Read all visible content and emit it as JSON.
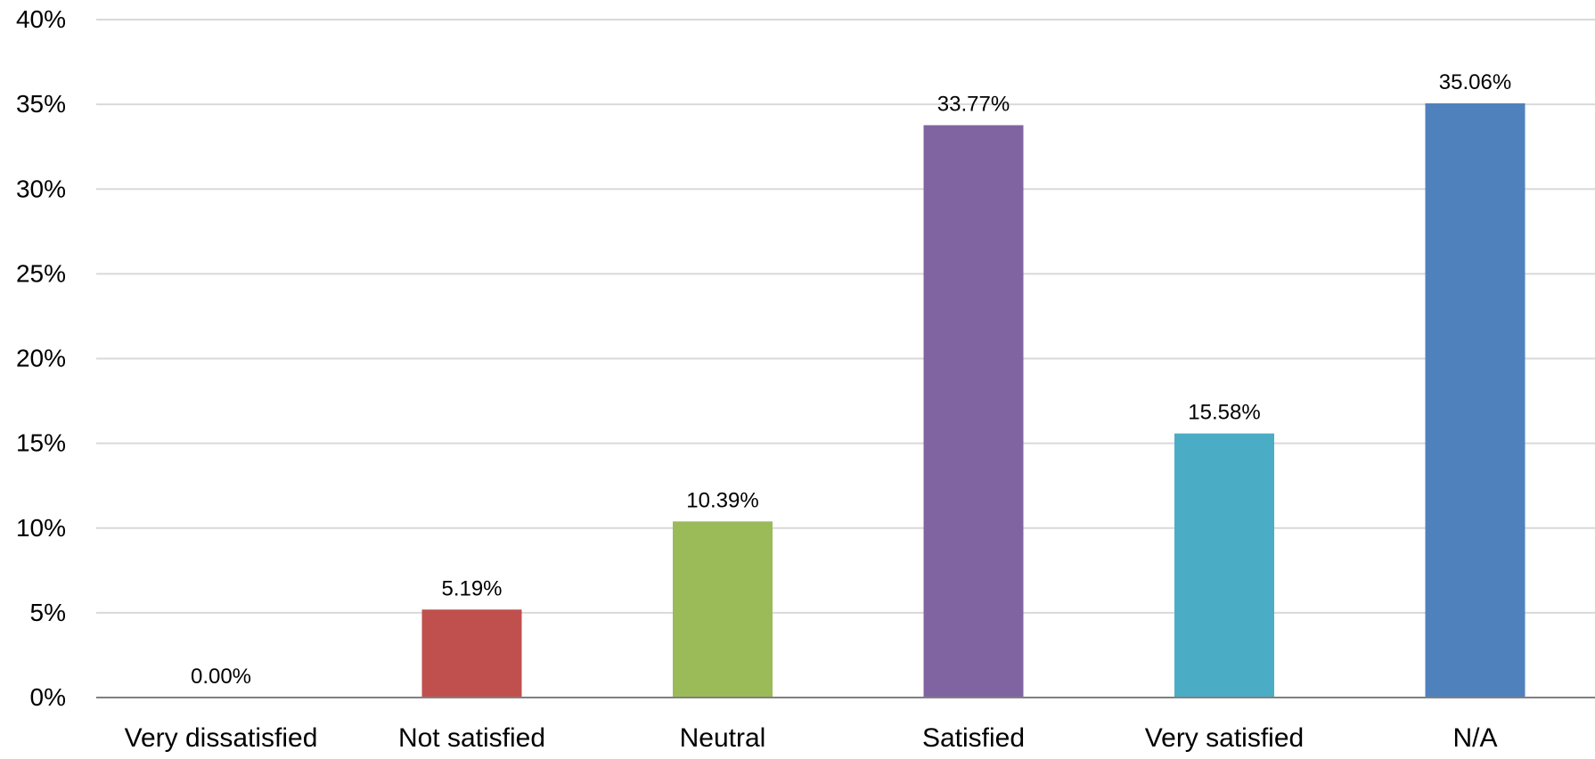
{
  "chart_data": {
    "type": "bar",
    "title": "",
    "xlabel": "",
    "ylabel": "",
    "categories": [
      "Very dissatisfied",
      "Not satisfied",
      "Neutral",
      "Satisfied",
      "Very satisfied",
      "N/A"
    ],
    "values": [
      0.0,
      5.19,
      10.39,
      33.77,
      15.58,
      35.06
    ],
    "data_labels": [
      "0.00%",
      "5.19%",
      "10.39%",
      "33.77%",
      "15.58%",
      "35.06%"
    ],
    "bar_colors": [
      "#C0504D",
      "#C0504D",
      "#9BBB59",
      "#8064A2",
      "#4BACC6",
      "#4F81BD"
    ],
    "ylim": [
      0,
      40
    ],
    "y_ticks": [
      0,
      5,
      10,
      15,
      20,
      25,
      30,
      35,
      40
    ],
    "y_tick_labels": [
      "0%",
      "5%",
      "10%",
      "15%",
      "20%",
      "25%",
      "30%",
      "35%",
      "40%"
    ],
    "grid": true,
    "legend": "none"
  }
}
